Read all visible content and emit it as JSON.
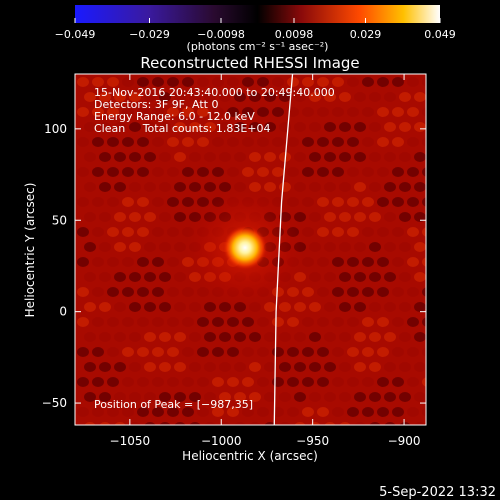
{
  "chart_data": {
    "type": "heatmap",
    "title": "Reconstructed RHESSI Image",
    "xlabel": "Heliocentric X (arcsec)",
    "ylabel": "Heliocentric Y (arcsec)",
    "xlim": [
      -1080,
      -888
    ],
    "ylim": [
      -62,
      130
    ],
    "x_ticks": [
      {
        "value": -1050,
        "label": "−1050"
      },
      {
        "value": -1000,
        "label": "−1000"
      },
      {
        "value": -950,
        "label": "−950"
      },
      {
        "value": -900,
        "label": "−900"
      }
    ],
    "y_ticks": [
      {
        "value": -50,
        "label": "−50"
      },
      {
        "value": 0,
        "label": "0"
      },
      {
        "value": 50,
        "label": "50"
      },
      {
        "value": 100,
        "label": "100"
      }
    ],
    "colorbar": {
      "min": -0.049,
      "max": 0.049,
      "ticks": [
        {
          "value": -0.049,
          "label": "−0.049"
        },
        {
          "value": -0.029,
          "label": "−0.029"
        },
        {
          "value": -0.0098,
          "label": "−0.0098"
        },
        {
          "value": 0.0098,
          "label": "0.0098"
        },
        {
          "value": 0.029,
          "label": "0.029"
        },
        {
          "value": 0.049,
          "label": "0.049"
        }
      ],
      "unit_label": "(photons cm⁻² s⁻¹ asec⁻²)"
    },
    "annotations": [
      "15‐Nov‐2016 20:43:40.000 to 20:49:40.000",
      "Detectors: 3F 9F, Att 0",
      "Energy Range: 6.0 ‐ 12.0 keV",
      "Clean     Total counts: 1.83E+04"
    ],
    "peak": {
      "x": -987,
      "y": 35,
      "label": "Position of Peak = [−987,35]"
    },
    "limb_points": [
      [
        -961,
        130
      ],
      [
        -967,
        60
      ],
      [
        -970,
        0
      ],
      [
        -971,
        -62
      ]
    ],
    "colors": {
      "background": "#000000",
      "limb": "#ffffff",
      "text": "#ffffff"
    }
  },
  "footer": {
    "timestamp": "5‐Sep‐2022 13:32"
  }
}
